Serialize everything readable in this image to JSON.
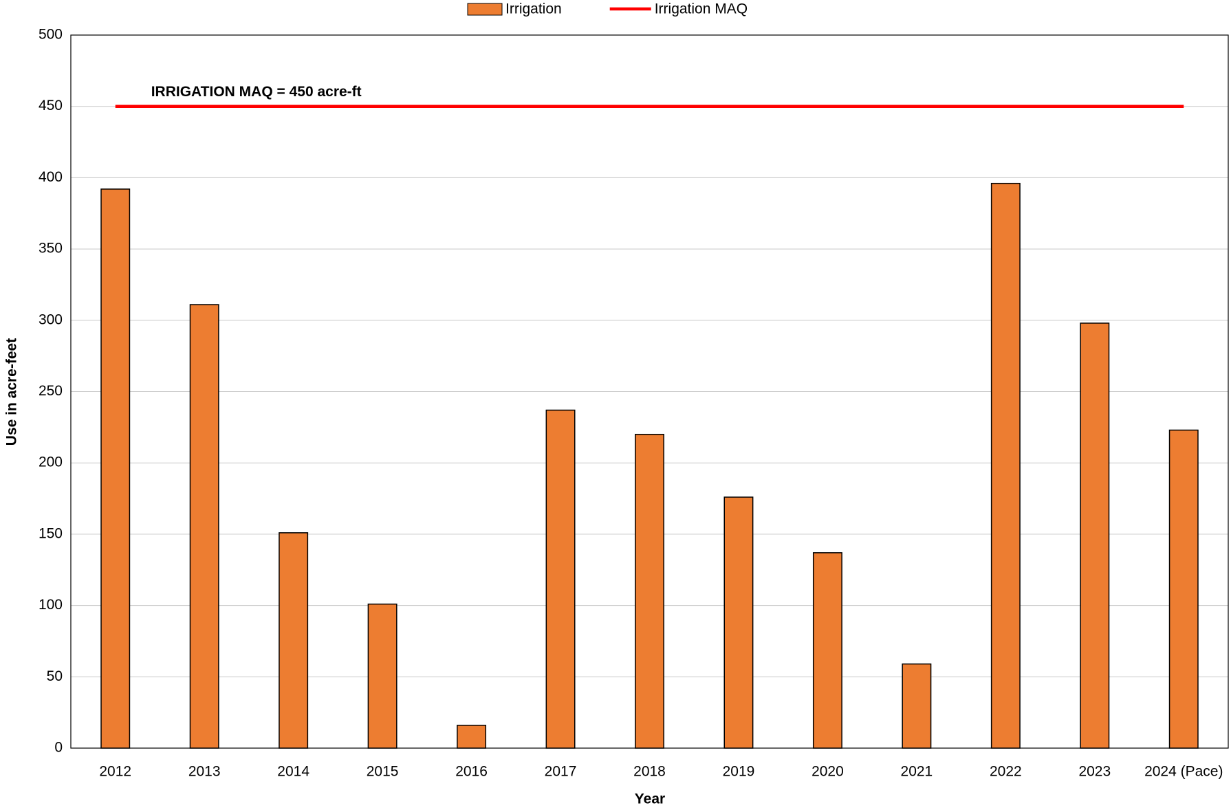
{
  "chart_data": {
    "type": "bar",
    "x_label": "Year",
    "y_label": "Use in acre-feet",
    "annotation": "IRRIGATION MAQ = 450 acre-ft",
    "categories": [
      "2012",
      "2013",
      "2014",
      "2015",
      "2016",
      "2017",
      "2018",
      "2019",
      "2020",
      "2021",
      "2022",
      "2023",
      "2024 (Pace)"
    ],
    "series": [
      {
        "name": "Irrigation",
        "type": "bar",
        "color": "#ed7d31",
        "values": [
          392,
          311,
          151,
          101,
          16,
          237,
          220,
          176,
          137,
          59,
          396,
          298,
          223
        ]
      },
      {
        "name": "Irrigation MAQ",
        "type": "line",
        "color": "#ff0000",
        "values": [
          450,
          450,
          450,
          450,
          450,
          450,
          450,
          450,
          450,
          450,
          450,
          450,
          450
        ]
      }
    ],
    "ylim": [
      0,
      500
    ],
    "yticks": [
      0,
      50,
      100,
      150,
      200,
      250,
      300,
      350,
      400,
      450,
      500
    ],
    "grid": true,
    "legend": "top"
  }
}
